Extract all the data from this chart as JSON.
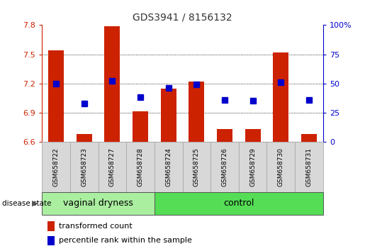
{
  "title": "GDS3941 / 8156132",
  "samples": [
    "GSM658722",
    "GSM658723",
    "GSM658727",
    "GSM658728",
    "GSM658724",
    "GSM658725",
    "GSM658726",
    "GSM658729",
    "GSM658730",
    "GSM658731"
  ],
  "red_values": [
    7.54,
    6.68,
    7.79,
    6.91,
    7.15,
    7.22,
    6.73,
    6.73,
    7.52,
    6.68
  ],
  "blue_percentiles": [
    50,
    33,
    52,
    38,
    46,
    49,
    36,
    35,
    51,
    36
  ],
  "ylim_left": [
    6.6,
    7.8
  ],
  "ylim_right": [
    0,
    100
  ],
  "yticks_left": [
    6.6,
    6.9,
    7.2,
    7.5,
    7.8
  ],
  "ytick_labels_left": [
    "6.6",
    "6.9",
    "7.2",
    "7.5",
    "7.8"
  ],
  "yticks_right": [
    0,
    25,
    50,
    75,
    100
  ],
  "ytick_labels_right": [
    "0",
    "25",
    "50",
    "75",
    "100%"
  ],
  "red_color": "#cc2200",
  "blue_color": "#0000cc",
  "bar_base": 6.6,
  "bar_width": 0.55,
  "blue_marker_size": 6,
  "legend_red_label": "transformed count",
  "legend_blue_label": "percentile rank within the sample",
  "disease_state_label": "disease state",
  "title_color": "#333333",
  "left_axis_color": "#cc2200",
  "right_axis_color": "#0000cc",
  "group_label_fontsize": 9,
  "tick_fontsize": 8,
  "sample_label_fontsize": 6.5,
  "vaginal_dryness_color": "#aaeea0",
  "control_color": "#55dd55",
  "sample_box_color": "#d8d8d8",
  "sample_box_edge": "#aaaaaa",
  "vaginal_dryness_count": 4,
  "control_count": 6
}
